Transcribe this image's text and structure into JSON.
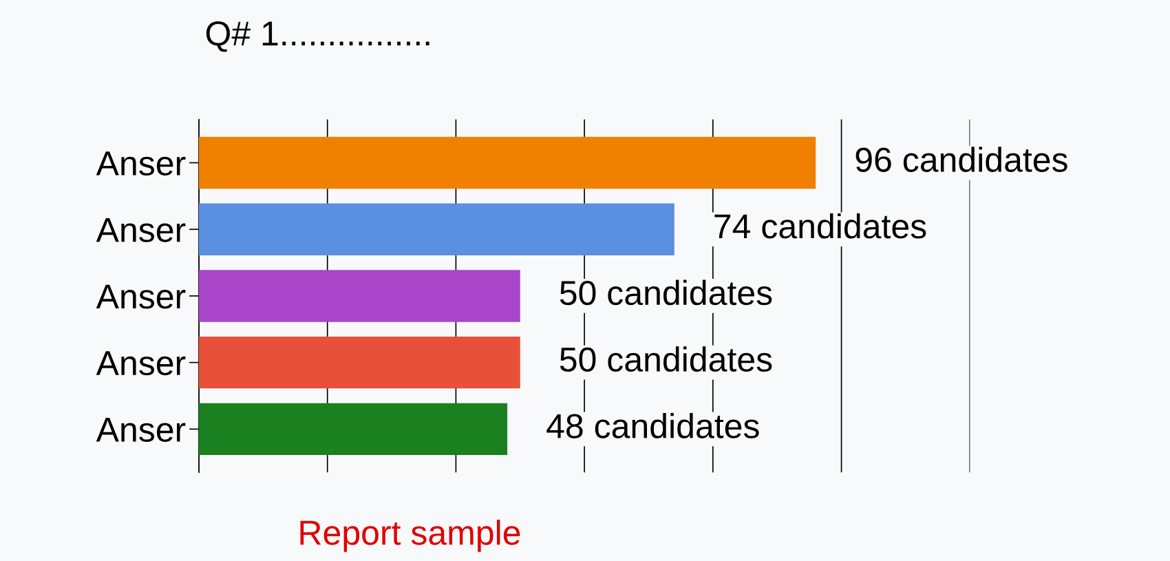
{
  "chart_data": {
    "type": "bar",
    "orientation": "horizontal",
    "title": "Q# 1................",
    "categories": [
      "Anser",
      "Anser",
      "Anser",
      "Anser",
      "Anser"
    ],
    "values": [
      96,
      74,
      50,
      50,
      48
    ],
    "colors": [
      "#f08000",
      "#5b8fe0",
      "#a845c8",
      "#e8503a",
      "#1a8020"
    ],
    "value_labels": [
      "96 candidates",
      "74 candidates",
      "50 candidates",
      "50 candidates",
      "48 candidates"
    ],
    "xlim": [
      0,
      120
    ],
    "xticks": [
      {
        "value": 0,
        "label": null
      },
      {
        "value": 20,
        "label": null
      },
      {
        "value": 40,
        "label": null
      },
      {
        "value": 60,
        "label": null
      },
      {
        "value": 80,
        "label": null
      },
      {
        "value": 100,
        "label": null
      },
      {
        "value": 120,
        "label": null
      }
    ],
    "grid": "x",
    "annotations": [
      "Report sample"
    ]
  }
}
